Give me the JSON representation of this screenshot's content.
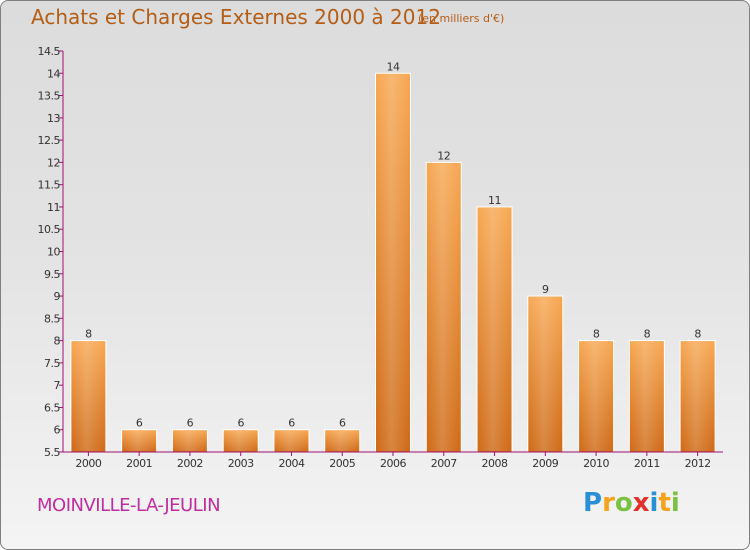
{
  "header": {
    "title": "Achats et Charges Externes 2000 à 2012",
    "subtitle": "(en milliers d'€)"
  },
  "footer": {
    "commune": "MOINVILLE-LA-JEULIN",
    "logo_text": "Proxiti",
    "logo_letters": [
      {
        "ch": "P",
        "color": "#2b8fd6"
      },
      {
        "ch": "r",
        "color": "#f7a21b"
      },
      {
        "ch": "o",
        "color": "#7cc242"
      },
      {
        "ch": "x",
        "color": "#e2312d"
      },
      {
        "ch": "i",
        "color": "#2b8fd6"
      },
      {
        "ch": "t",
        "color": "#f7a21b"
      },
      {
        "ch": "i",
        "color": "#7cc242"
      }
    ]
  },
  "chart_data": {
    "type": "bar",
    "categories": [
      "2000",
      "2001",
      "2002",
      "2003",
      "2004",
      "2005",
      "2006",
      "2007",
      "2008",
      "2009",
      "2010",
      "2011",
      "2012"
    ],
    "values": [
      8,
      6,
      6,
      6,
      6,
      6,
      14,
      12,
      11,
      9,
      8,
      8,
      8
    ],
    "value_labels": [
      "8",
      "6",
      "6",
      "6",
      "6",
      "6",
      "14",
      "12",
      "11",
      "9",
      "8",
      "8",
      "8"
    ],
    "ylim": [
      5.5,
      14.5
    ],
    "yticks": [
      5.5,
      6,
      6.5,
      7,
      7.5,
      8,
      8.5,
      9,
      9.5,
      10,
      10.5,
      11,
      11.5,
      12,
      12.5,
      13,
      13.5,
      14,
      14.5
    ],
    "ytick_labels": [
      "5.5",
      "6",
      "6.5",
      "7",
      "7.5",
      "8",
      "8.5",
      "9",
      "9.5",
      "10",
      "10.5",
      "11",
      "11.5",
      "12",
      "12.5",
      "13",
      "13.5",
      "14",
      "14.5"
    ],
    "bar_color": "#f0953a",
    "axis_color": "#a0126e",
    "grid": false
  }
}
